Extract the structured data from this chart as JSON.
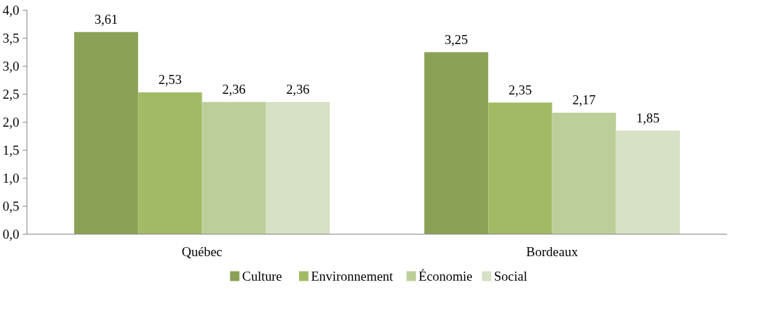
{
  "chart_data": {
    "type": "bar",
    "categories": [
      "Québec",
      "Bordeaux"
    ],
    "series": [
      {
        "name": "Culture",
        "color": "#8ba256",
        "values": [
          3.61,
          3.25
        ],
        "value_labels": [
          "3,61",
          "3,25"
        ]
      },
      {
        "name": "Environnement",
        "color": "#a1bb65",
        "values": [
          2.53,
          2.35
        ],
        "value_labels": [
          "2,53",
          "2,35"
        ]
      },
      {
        "name": "Économie",
        "color": "#bdcf98",
        "values": [
          2.36,
          2.17
        ],
        "value_labels": [
          "2,36",
          "2,17"
        ]
      },
      {
        "name": "Social",
        "color": "#d7e1c4",
        "values": [
          2.36,
          1.85
        ],
        "value_labels": [
          "2,36",
          "1,85"
        ]
      }
    ],
    "ylim": [
      0,
      4
    ],
    "yticks": [
      {
        "value": 0,
        "label": "0,0"
      },
      {
        "value": 0.5,
        "label": "0,5"
      },
      {
        "value": 1,
        "label": "1,0"
      },
      {
        "value": 1.5,
        "label": "1,5"
      },
      {
        "value": 2,
        "label": "2,0"
      },
      {
        "value": 2.5,
        "label": "2,5"
      },
      {
        "value": 3,
        "label": "3,0"
      },
      {
        "value": 3.5,
        "label": "3,5"
      },
      {
        "value": 4,
        "label": "4,0"
      }
    ],
    "grid": false,
    "legend": "bottom"
  }
}
